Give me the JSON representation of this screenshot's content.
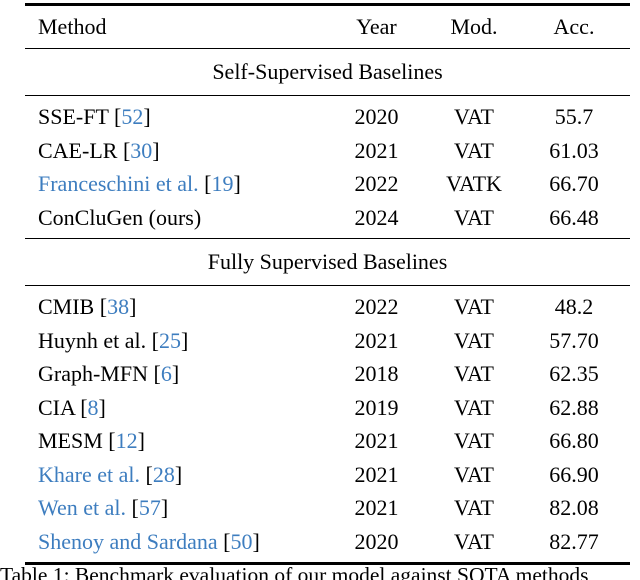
{
  "colors": {
    "link_blue": "#3d7dbf",
    "text": "#000000",
    "background": "#ffffff"
  },
  "header": {
    "method": "Method",
    "year": "Year",
    "mod": "Mod.",
    "acc": "Acc."
  },
  "brackets": {
    "open": "[",
    "close": "]"
  },
  "sections": [
    {
      "title": "Self-Supervised Baselines",
      "rows": [
        {
          "method": "SSE-FT",
          "ref": "52",
          "year": "2020",
          "mod": "VAT",
          "acc": "55.7",
          "blue_name": false
        },
        {
          "method": "CAE-LR",
          "ref": "30",
          "year": "2021",
          "mod": "VAT",
          "acc": "61.03",
          "blue_name": false
        },
        {
          "method": "Franceschini et al.",
          "ref": "19",
          "year": "2022",
          "mod": "VATK",
          "acc": "66.70",
          "blue_name": true
        },
        {
          "method": "ConCluGen (ours)",
          "ref": "",
          "year": "2024",
          "mod": "VAT",
          "acc": "66.48",
          "blue_name": false
        }
      ]
    },
    {
      "title": "Fully Supervised Baselines",
      "rows": [
        {
          "method": "CMIB",
          "ref": "38",
          "year": "2022",
          "mod": "VAT",
          "acc": "48.2",
          "blue_name": false
        },
        {
          "method": "Huynh et al.",
          "ref": "25",
          "year": "2021",
          "mod": "VAT",
          "acc": "57.70",
          "blue_name": false
        },
        {
          "method": "Graph-MFN",
          "ref": "6",
          "year": "2018",
          "mod": "VAT",
          "acc": "62.35",
          "blue_name": false
        },
        {
          "method": "CIA",
          "ref": "8",
          "year": "2019",
          "mod": "VAT",
          "acc": "62.88",
          "blue_name": false
        },
        {
          "method": "MESM",
          "ref": "12",
          "year": "2021",
          "mod": "VAT",
          "acc": "66.80",
          "blue_name": false
        },
        {
          "method": "Khare et al.",
          "ref": "28",
          "year": "2021",
          "mod": "VAT",
          "acc": "66.90",
          "blue_name": true
        },
        {
          "method": "Wen et al.",
          "ref": "57",
          "year": "2021",
          "mod": "VAT",
          "acc": "82.08",
          "blue_name": true
        },
        {
          "method": "Shenoy and Sardana",
          "ref": "50",
          "year": "2020",
          "mod": "VAT",
          "acc": "82.77",
          "blue_name": true
        }
      ]
    }
  ],
  "caption": "Table 1: Benchmark evaluation of our model against SOTA methods"
}
